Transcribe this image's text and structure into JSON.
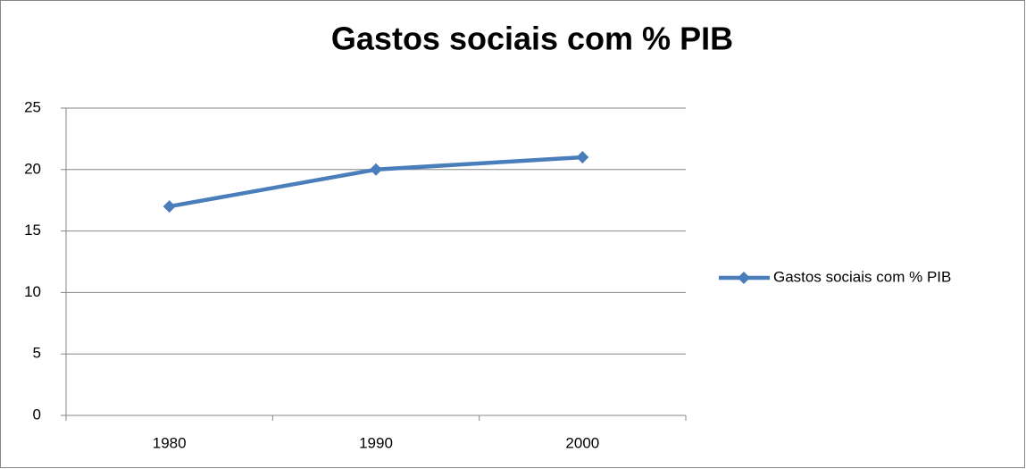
{
  "chart_data": {
    "type": "line",
    "title": "Gastos sociais com % PIB",
    "categories": [
      "1980",
      "1990",
      "2000"
    ],
    "series": [
      {
        "name": "Gastos sociais com % PIB",
        "color": "#4a7ebb",
        "values": [
          17,
          20,
          21
        ]
      }
    ],
    "ylim": [
      0,
      25
    ],
    "yticks": [
      0,
      5,
      10,
      15,
      20,
      25
    ],
    "grid": true,
    "legend": "right"
  }
}
